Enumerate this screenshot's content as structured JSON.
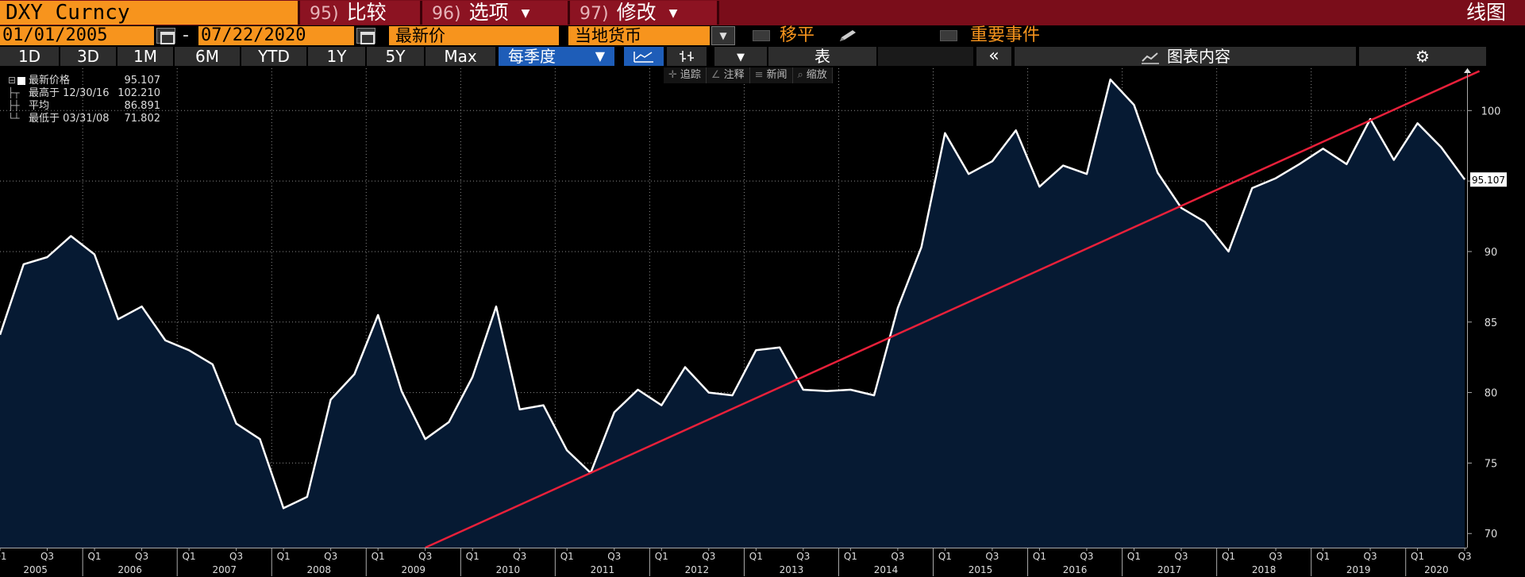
{
  "header": {
    "ticker": "DXY Curncy",
    "buttons": [
      {
        "num": "95)",
        "label": "比较"
      },
      {
        "num": "96)",
        "label": "选项"
      },
      {
        "num": "97)",
        "label": "修改"
      }
    ],
    "chart_kind_label": "线图"
  },
  "controls": {
    "start_date": "01/01/2005",
    "date_separator": "-",
    "end_date": "07/22/2020",
    "price_field": "最新价",
    "currency_field": "当地货币",
    "shift_label": "移平",
    "events_label": "重要事件"
  },
  "toolbar": {
    "ranges": [
      "1D",
      "3D",
      "1M",
      "6M",
      "YTD",
      "1Y",
      "5Y",
      "Max"
    ],
    "frequency": "每季度",
    "table_label": "表",
    "collapse_label": "«",
    "content_label": "图表内容",
    "settings_label": "⚙"
  },
  "chart_tools": {
    "track": "追踪",
    "annotate": "注释",
    "news": "新闻",
    "zoom": "缩放"
  },
  "legend": {
    "last": {
      "label": "最新价格",
      "value": "95.107"
    },
    "high": {
      "label": "最高于 12/30/16",
      "value": "102.210"
    },
    "avg": {
      "label": "平均",
      "value": "86.891"
    },
    "low": {
      "label": "最低于 03/31/08",
      "value": "71.802"
    }
  },
  "colors": {
    "line": "#ffffff",
    "area": "#061a33",
    "trend": "#e8203a",
    "ticker_bg": "#f7941d",
    "header_bg": "#7a0d1a",
    "highlight": "#1e5db8"
  },
  "chart_data": {
    "type": "area",
    "frequency": "quarterly",
    "ylim": [
      69,
      103
    ],
    "yticks": [
      70,
      75,
      80,
      85,
      90,
      95,
      100
    ],
    "last_value_label": "95.107",
    "x_quarters": [
      "2005 Q1",
      "2005 Q2",
      "2005 Q3",
      "2005 Q4",
      "2006 Q1",
      "2006 Q2",
      "2006 Q3",
      "2006 Q4",
      "2007 Q1",
      "2007 Q2",
      "2007 Q3",
      "2007 Q4",
      "2008 Q1",
      "2008 Q2",
      "2008 Q3",
      "2008 Q4",
      "2009 Q1",
      "2009 Q2",
      "2009 Q3",
      "2009 Q4",
      "2010 Q1",
      "2010 Q2",
      "2010 Q3",
      "2010 Q4",
      "2011 Q1",
      "2011 Q2",
      "2011 Q3",
      "2011 Q4",
      "2012 Q1",
      "2012 Q2",
      "2012 Q3",
      "2012 Q4",
      "2013 Q1",
      "2013 Q2",
      "2013 Q3",
      "2013 Q4",
      "2014 Q1",
      "2014 Q2",
      "2014 Q3",
      "2014 Q4",
      "2015 Q1",
      "2015 Q2",
      "2015 Q3",
      "2015 Q4",
      "2016 Q1",
      "2016 Q2",
      "2016 Q3",
      "2016 Q4",
      "2017 Q1",
      "2017 Q2",
      "2017 Q3",
      "2017 Q4",
      "2018 Q1",
      "2018 Q2",
      "2018 Q3",
      "2018 Q4",
      "2019 Q1",
      "2019 Q2",
      "2019 Q3",
      "2019 Q4",
      "2020 Q1",
      "2020 Q2",
      "2020 Q3"
    ],
    "values": [
      84.1,
      89.1,
      89.6,
      91.1,
      89.8,
      85.2,
      86.1,
      83.7,
      83.0,
      82.0,
      77.8,
      76.7,
      71.8,
      72.6,
      79.5,
      81.3,
      85.5,
      80.1,
      76.7,
      77.9,
      81.1,
      86.1,
      78.8,
      79.1,
      75.9,
      74.3,
      78.6,
      80.2,
      79.1,
      81.8,
      80.0,
      79.8,
      83.0,
      83.2,
      80.2,
      80.1,
      80.2,
      79.8,
      86.0,
      90.3,
      98.4,
      95.5,
      96.4,
      98.6,
      94.6,
      96.1,
      95.5,
      102.2,
      100.4,
      95.6,
      93.1,
      92.1,
      90.0,
      94.5,
      95.2,
      96.2,
      97.3,
      96.2,
      99.4,
      96.5,
      99.1,
      97.4,
      95.107
    ],
    "trendline": {
      "from": {
        "quarter": "2009 Q3",
        "value": 69.0
      },
      "to": {
        "quarter": "2020 Q3",
        "value": 102.8
      }
    },
    "x_year_labels": [
      "2005",
      "2006",
      "2007",
      "2008",
      "2009",
      "2010",
      "2011",
      "2012",
      "2013",
      "2014",
      "2015",
      "2016",
      "2017",
      "2018",
      "2019",
      "2020"
    ]
  }
}
